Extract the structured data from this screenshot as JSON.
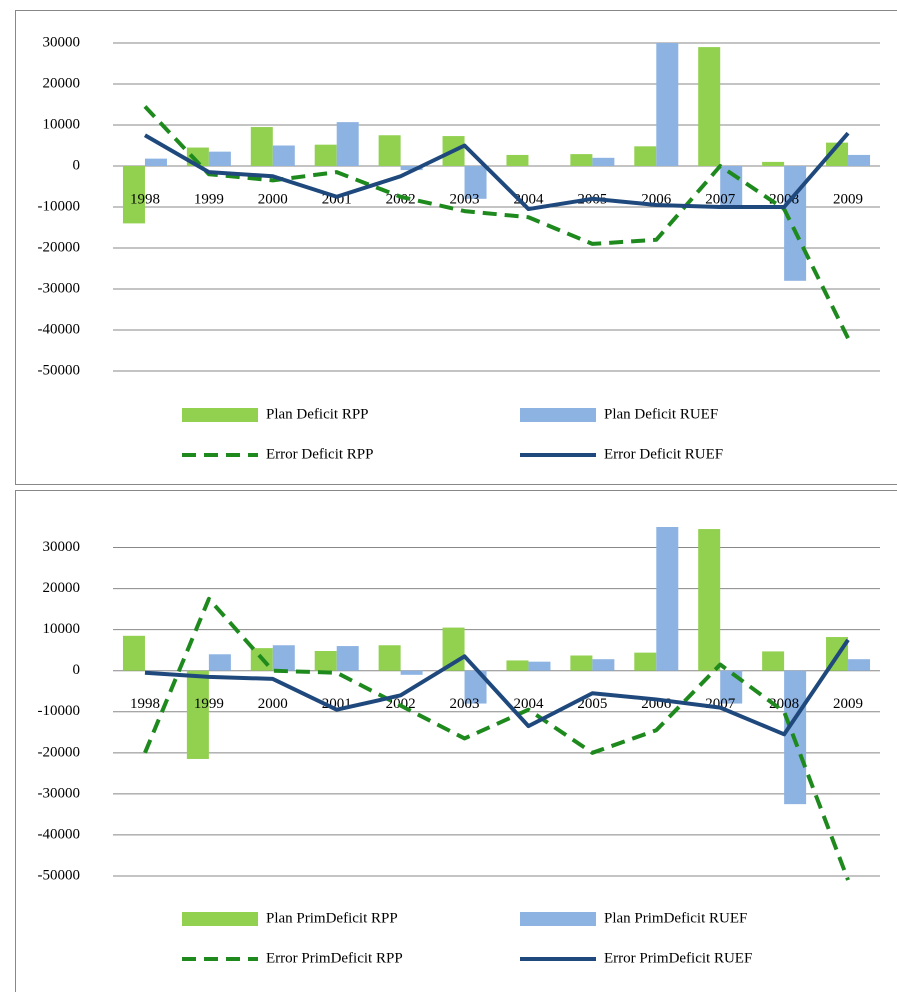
{
  "chart_data": [
    {
      "type": "bar",
      "grid": true,
      "legend": "bottom",
      "categories": [
        "1998",
        "1999",
        "2000",
        "2001",
        "2002",
        "2003",
        "2004",
        "2005",
        "2006",
        "2007",
        "2008",
        "2009"
      ],
      "ylim": [
        -50000,
        30000
      ],
      "yticks": [
        30000,
        20000,
        10000,
        0,
        -10000,
        -20000,
        -30000,
        -40000,
        -50000
      ],
      "series": [
        {
          "name": "Plan Deficit RPP",
          "type": "bar",
          "color": "#92d050",
          "values": [
            -14000,
            4500,
            9500,
            5200,
            7500,
            7300,
            2700,
            2900,
            4800,
            29000,
            1000,
            5700
          ]
        },
        {
          "name": "Plan Deficit RUEF",
          "type": "bar",
          "color": "#8db3e2",
          "values": [
            1800,
            3500,
            5000,
            10700,
            -1000,
            -8000,
            0,
            2000,
            30000,
            -10000,
            -28000,
            2700
          ]
        },
        {
          "name": "Error Deficit RPP",
          "type": "line",
          "style": "dashed",
          "color": "#1e8a1e",
          "values": [
            14500,
            -2000,
            -3500,
            -1500,
            -7500,
            -11000,
            -12500,
            -19000,
            -18000,
            0,
            -10500,
            -42000
          ]
        },
        {
          "name": "Error Deficit RUEF",
          "type": "line",
          "style": "solid",
          "color": "#1f497d",
          "values": [
            7500,
            -1500,
            -2500,
            -7500,
            -2500,
            5000,
            -10500,
            -8000,
            -9500,
            -10000,
            -10000,
            8000
          ]
        }
      ]
    },
    {
      "type": "bar",
      "grid": true,
      "legend": "bottom",
      "categories": [
        "1998",
        "1999",
        "2000",
        "2001",
        "2002",
        "2003",
        "2004",
        "2005",
        "2006",
        "2007",
        "2008",
        "2009"
      ],
      "ylim": [
        -52000,
        35000
      ],
      "yticks": [
        30000,
        20000,
        10000,
        0,
        -10000,
        -20000,
        -30000,
        -40000,
        -50000
      ],
      "series": [
        {
          "name": "Plan PrimDeficit RPP",
          "type": "bar",
          "color": "#92d050",
          "values": [
            8500,
            -21500,
            5500,
            4800,
            6200,
            10500,
            2500,
            3700,
            4400,
            34500,
            4700,
            8200
          ]
        },
        {
          "name": "Plan PrimDeficit RUEF",
          "type": "bar",
          "color": "#8db3e2",
          "values": [
            0,
            4000,
            6200,
            6000,
            -1000,
            -8000,
            2200,
            2800,
            35000,
            -8000,
            -32500,
            2800
          ]
        },
        {
          "name": "Error PrimDeficit RPP",
          "type": "line",
          "style": "dashed",
          "color": "#1e8a1e",
          "values": [
            -20000,
            17500,
            0,
            -500,
            -8500,
            -16500,
            -9500,
            -20000,
            -14500,
            1500,
            -10000,
            -51000
          ]
        },
        {
          "name": "Error PrimDeficit RUEF",
          "type": "line",
          "style": "solid",
          "color": "#1f497d",
          "values": [
            -500,
            -1500,
            -2000,
            -9500,
            -6000,
            3500,
            -13500,
            -5500,
            -7000,
            -9000,
            -15500,
            7500
          ]
        }
      ]
    }
  ]
}
